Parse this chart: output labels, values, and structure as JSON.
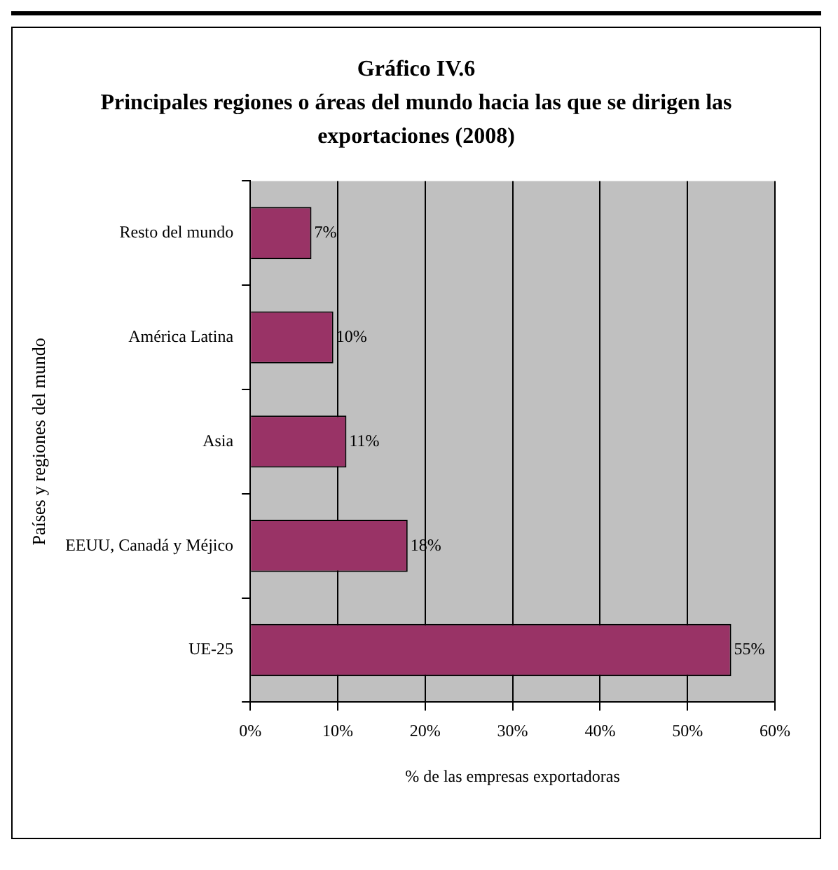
{
  "chart_data": {
    "type": "bar",
    "orientation": "horizontal",
    "title": "Gráfico IV.6",
    "subtitle": "Principales regiones o áreas del mundo hacia las que se dirigen las exportaciones (2008)",
    "xlabel": "% de las empresas exportadoras",
    "ylabel": "Países y regiones del mundo",
    "categories": [
      "Resto del mundo",
      "América Latina",
      "Asia",
      "EEUU, Canadá y Méjico",
      "UE-25"
    ],
    "values": [
      7,
      9.5,
      11,
      18,
      55
    ],
    "value_labels": [
      "7%",
      "10%",
      "11%",
      "18%",
      "55%"
    ],
    "color": "#993366",
    "xlim": [
      0,
      60
    ],
    "xticks": [
      {
        "value": 0,
        "label": "0%"
      },
      {
        "value": 10,
        "label": "10%"
      },
      {
        "value": 20,
        "label": "20%"
      },
      {
        "value": 30,
        "label": "30%"
      },
      {
        "value": 40,
        "label": "40%"
      },
      {
        "value": 50,
        "label": "50%"
      },
      {
        "value": 60,
        "label": "60%"
      }
    ],
    "grid": "x",
    "legend": false
  }
}
